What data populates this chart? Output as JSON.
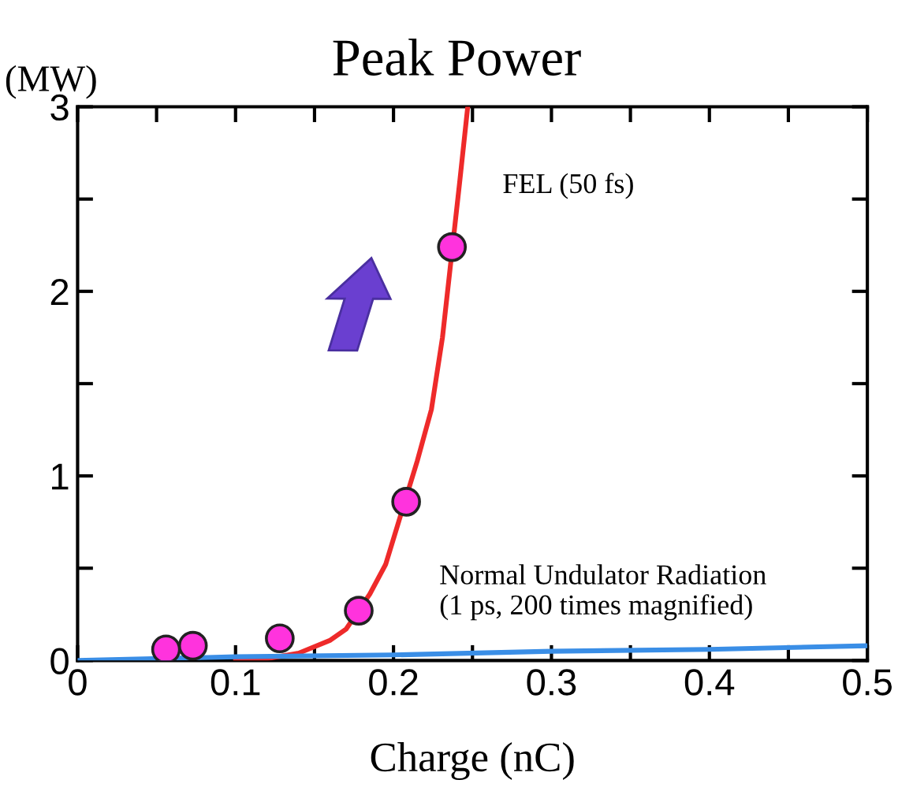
{
  "chart_data": {
    "type": "line",
    "title": "Peak Power",
    "xlabel": "Charge (nC)",
    "ylabel": "(MW)",
    "xlim": [
      0,
      0.5
    ],
    "ylim": [
      0,
      3
    ],
    "xticks": [
      0,
      {
        "value": 0.05,
        "label": null
      },
      0.1,
      {
        "value": 0.15,
        "label": null
      },
      0.2,
      {
        "value": 0.25,
        "label": null
      },
      0.3,
      {
        "value": 0.35,
        "label": null
      },
      0.4,
      {
        "value": 0.45,
        "label": null
      },
      0.5
    ],
    "yticks": [
      0,
      {
        "value": 0.5,
        "label": null
      },
      1,
      {
        "value": 1.5,
        "label": null
      },
      2,
      {
        "value": 2.5,
        "label": null
      },
      3
    ],
    "grid": false,
    "legend": false,
    "series": [
      {
        "color": "#ee2a2a",
        "marker": "none",
        "x": [
          0.1,
          0.12,
          0.14,
          0.16,
          0.17,
          0.185,
          0.195,
          0.215,
          0.224,
          0.231,
          0.242,
          0.247
        ],
        "values": [
          0,
          0.01,
          0.04,
          0.11,
          0.17,
          0.36,
          0.52,
          1.08,
          1.36,
          1.75,
          2.6,
          3.0
        ]
      },
      {
        "color": "#3a8ee6",
        "marker": "none",
        "x": [
          0,
          0.1,
          0.2,
          0.3,
          0.4,
          0.5
        ],
        "values": [
          0,
          0.02,
          0.03,
          0.05,
          0.06,
          0.08
        ]
      },
      {
        "type": "scatter",
        "color": "#ff33dd",
        "marker": "circle",
        "x": [
          0.056,
          0.073,
          0.128,
          0.178,
          0.208,
          0.237
        ],
        "values": [
          0.06,
          0.08,
          0.12,
          0.27,
          0.86,
          2.24
        ]
      }
    ],
    "annotations": [
      "FEL (50 fs)",
      "Normal Undulator Radiation\n(1 ps, 200 times magnified)"
    ]
  }
}
